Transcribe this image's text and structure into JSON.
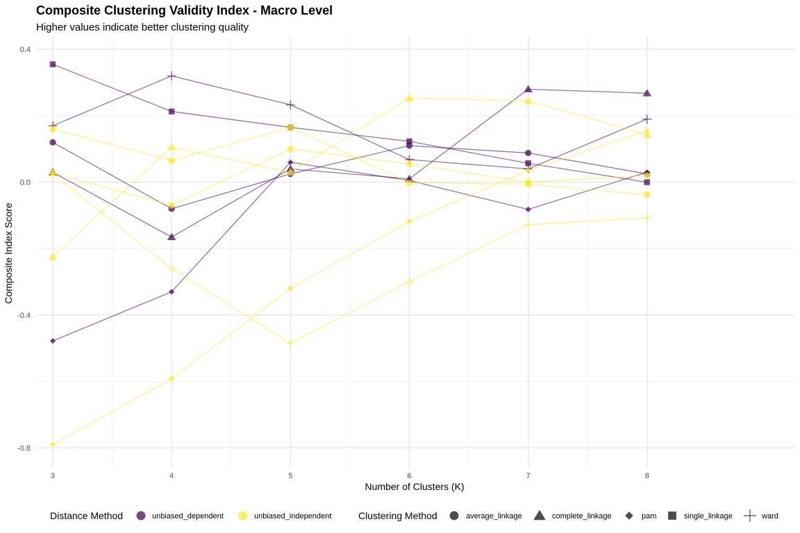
{
  "chart_data": {
    "type": "line",
    "title": "Composite Clustering Validity Index - Macro Level",
    "subtitle": "Higher values indicate better clustering quality",
    "xlabel": "Number of Clusters (K)",
    "ylabel": "Composite Index Score",
    "x": [
      3,
      4,
      5,
      6,
      7,
      8
    ],
    "x_ticks": [
      "3",
      "4",
      "5",
      "6",
      "7",
      "8"
    ],
    "y_ticks": [
      {
        "value": 0.4,
        "label": "0.4"
      },
      {
        "value": 0.0,
        "label": "0.0"
      },
      {
        "value": -0.4,
        "label": "-0.4"
      },
      {
        "value": -0.8,
        "label": "-0.8"
      }
    ],
    "xlim": [
      2.86,
      9.24
    ],
    "ylim": [
      -0.86,
      0.44
    ],
    "grid": true,
    "legend_position": "bottom",
    "colors": {
      "unbiased_dependent": "#440154",
      "unbiased_independent": "#FDE725"
    },
    "legend": {
      "color_title": "Distance Method",
      "color_items": [
        {
          "key": "unbiased_dependent",
          "label": "unbiased_dependent"
        },
        {
          "key": "unbiased_independent",
          "label": "unbiased_independent"
        }
      ],
      "shape_title": "Clustering Method",
      "shape_items": [
        {
          "key": "average_linkage",
          "label": "average_linkage",
          "shape": "circle"
        },
        {
          "key": "complete_linkage",
          "label": "complete_linkage",
          "shape": "triangle"
        },
        {
          "key": "pam",
          "label": "pam",
          "shape": "diamond"
        },
        {
          "key": "single_linkage",
          "label": "single_linkage",
          "shape": "square"
        },
        {
          "key": "ward",
          "label": "ward",
          "shape": "plus"
        }
      ]
    },
    "series": [
      {
        "distance": "unbiased_dependent",
        "method": "average_linkage",
        "values": [
          0.12,
          -0.08,
          0.025,
          0.11,
          0.088,
          0.025
        ]
      },
      {
        "distance": "unbiased_dependent",
        "method": "complete_linkage",
        "values": [
          0.03,
          -0.165,
          0.04,
          0.01,
          0.28,
          0.268
        ]
      },
      {
        "distance": "unbiased_dependent",
        "method": "pam",
        "values": [
          -0.478,
          -0.33,
          0.06,
          0.005,
          -0.082,
          0.03
        ]
      },
      {
        "distance": "unbiased_dependent",
        "method": "single_linkage",
        "values": [
          0.355,
          0.213,
          0.165,
          0.123,
          0.057,
          0.0
        ]
      },
      {
        "distance": "unbiased_dependent",
        "method": "ward",
        "values": [
          0.17,
          0.32,
          0.233,
          0.068,
          0.04,
          0.19
        ]
      },
      {
        "distance": "unbiased_independent",
        "method": "average_linkage",
        "values": [
          0.028,
          -0.07,
          0.1,
          0.055,
          0.0,
          0.02
        ]
      },
      {
        "distance": "unbiased_independent",
        "method": "complete_linkage",
        "values": [
          -0.225,
          0.105,
          0.03,
          0.253,
          0.245,
          0.143
        ]
      },
      {
        "distance": "unbiased_independent",
        "method": "pam",
        "values": [
          -0.79,
          -0.592,
          -0.32,
          -0.118,
          0.035,
          0.155
        ]
      },
      {
        "distance": "unbiased_independent",
        "method": "single_linkage",
        "values": [
          0.16,
          0.065,
          0.165,
          -0.002,
          -0.006,
          -0.038
        ]
      },
      {
        "distance": "unbiased_independent",
        "method": "ward",
        "values": [
          0.025,
          -0.26,
          -0.485,
          -0.3,
          -0.128,
          -0.107
        ]
      }
    ]
  }
}
